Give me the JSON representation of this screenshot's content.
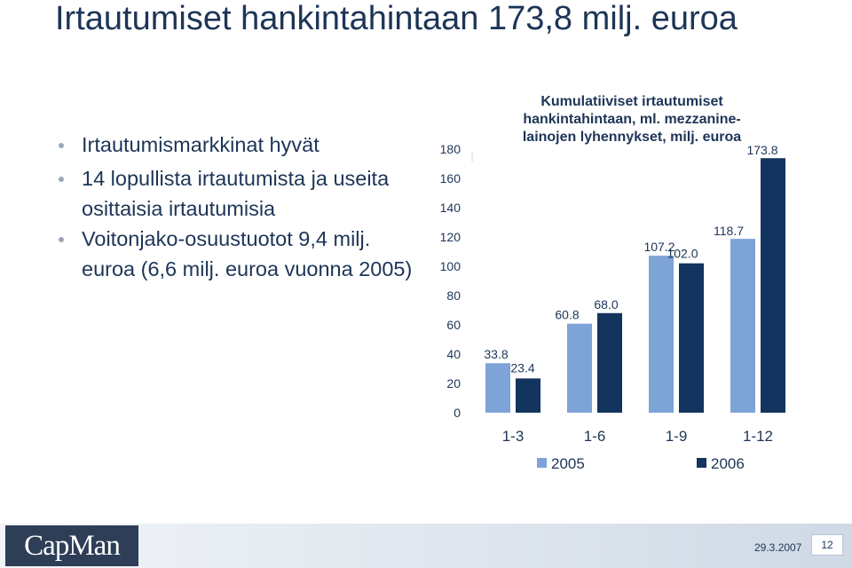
{
  "slide": {
    "title": "Irtautumiset hankintahintaan 173,8 milj. euroa",
    "bullets": [
      "Irtautumismarkkinat hyvät",
      "14 lopullista irtautumista ja useita osittaisia irtautumisia",
      "Voitonjako-osuustuotot 9,4 milj. euroa (6,6 milj. euroa vuonna 2005)"
    ]
  },
  "chart_data": {
    "type": "bar",
    "title_lines": [
      "Kumulatiiviset irtautumiset",
      "hankintahintaan, ml. mezzanine-",
      "lainojen lyhennykset, milj. euroa"
    ],
    "categories": [
      "1-3",
      "1-6",
      "1-9",
      "1-12"
    ],
    "series": [
      {
        "name": "2005",
        "values": [
          33.8,
          60.8,
          107.2,
          118.7
        ],
        "labels": [
          "33.8",
          "60.8",
          "107.2",
          "118.7"
        ],
        "color": "#7ea3d6"
      },
      {
        "name": "2006",
        "values": [
          23.4,
          68.0,
          102.0,
          173.8
        ],
        "labels": [
          "23.4",
          "68.0",
          "102.0",
          "173.8"
        ],
        "color": "#12345e"
      }
    ],
    "yticks": [
      "0",
      "20",
      "40",
      "60",
      "80",
      "100",
      "120",
      "140",
      "160",
      "180"
    ],
    "ylim": [
      0,
      180
    ],
    "grid": false,
    "legend": "bottom"
  },
  "colors": {
    "text": "#1d3557",
    "bar_2005": "#7ea3d6",
    "bar_2006": "#12345e"
  },
  "footer": {
    "logo": "CapMan",
    "date": "29.3.2007",
    "page": "12"
  }
}
